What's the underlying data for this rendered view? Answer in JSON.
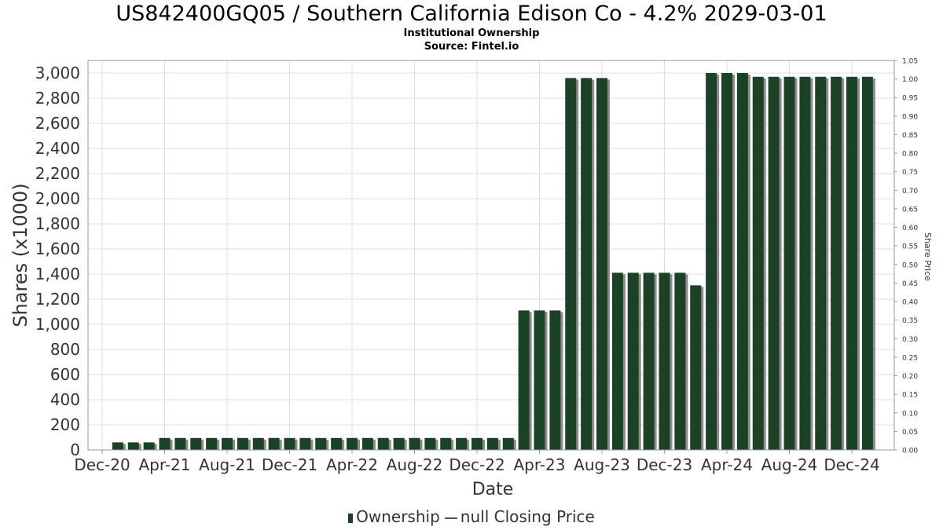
{
  "chart_data": {
    "type": "bar",
    "title": "US842400GQ05 / Southern California Edison Co - 4.2% 2029-03-01",
    "subtitle": "Institutional Ownership",
    "source": "Source: Fintel.io",
    "xlabel": "Date",
    "ylabel": "Shares (x1000)",
    "ylabel_right": "Share Price",
    "ylim": [
      0,
      3100
    ],
    "ylim_right": [
      0,
      1.05
    ],
    "yticks": [
      "0",
      "200",
      "400",
      "600",
      "800",
      "1,000",
      "1,200",
      "1,400",
      "1,600",
      "1,800",
      "2,000",
      "2,200",
      "2,400",
      "2,600",
      "2,800",
      "3,000"
    ],
    "yticks_right": [
      "0.00",
      "0.05",
      "0.10",
      "0.15",
      "0.20",
      "0.25",
      "0.30",
      "0.35",
      "0.40",
      "0.45",
      "0.50",
      "0.55",
      "0.60",
      "0.65",
      "0.70",
      "0.75",
      "0.80",
      "0.85",
      "0.90",
      "0.95",
      "1.00",
      "1.05"
    ],
    "xticks": [
      "Dec-20",
      "Apr-21",
      "Aug-21",
      "Dec-21",
      "Apr-22",
      "Aug-22",
      "Dec-22",
      "Apr-23",
      "Aug-23",
      "Dec-23",
      "Apr-24",
      "Aug-24",
      "Dec-24"
    ],
    "grid": true,
    "legend_position": "bottom-center",
    "series": [
      {
        "name": "Ownership",
        "color": "#1b4127",
        "values": [
          60,
          60,
          60,
          95,
          95,
          95,
          95,
          95,
          95,
          95,
          95,
          95,
          95,
          95,
          95,
          95,
          95,
          95,
          95,
          95,
          95,
          95,
          95,
          95,
          95,
          95,
          1110,
          1110,
          1110,
          2960,
          2960,
          2960,
          1410,
          1410,
          1410,
          1410,
          1410,
          1310,
          3000,
          3000,
          3000,
          2970,
          2970,
          2970,
          2970,
          2970,
          2970,
          2970,
          2970
        ]
      }
    ],
    "legend": {
      "ownership_label": "Ownership",
      "price_label": "null Closing Price"
    }
  }
}
